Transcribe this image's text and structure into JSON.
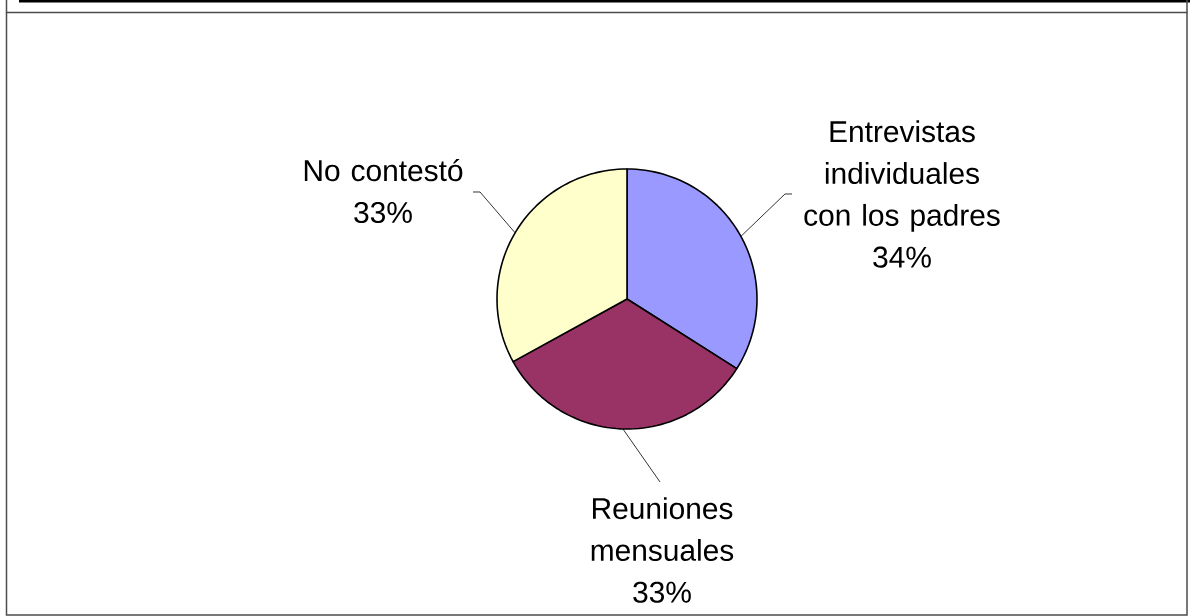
{
  "chart_data": {
    "type": "pie",
    "categories": [
      "Entrevistas individuales con los padres",
      "Reuniones mensuales",
      "No contestó"
    ],
    "values": [
      34,
      33,
      33
    ],
    "value_labels": [
      "34%",
      "33%",
      "33%"
    ],
    "colors": [
      "#9999ff",
      "#993366",
      "#ffffcc"
    ]
  }
}
